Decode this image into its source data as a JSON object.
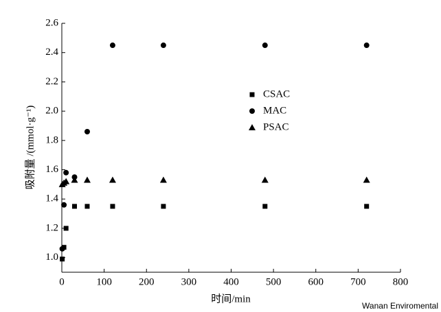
{
  "chart_data": {
    "type": "scatter",
    "x_label": "时间/min",
    "y_label": "吸附量 /(mmol·g⁻¹)",
    "x": [
      1,
      5,
      10,
      30,
      60,
      120,
      240,
      480,
      720
    ],
    "series": [
      {
        "name": "CSAC",
        "color": "#000000",
        "marker": "square",
        "values": [
          0.99,
          1.07,
          1.2,
          1.35,
          1.35,
          1.35,
          1.35,
          1.35,
          1.35
        ]
      },
      {
        "name": "MAC",
        "color": "#000000",
        "marker": "circle",
        "values": [
          1.06,
          1.36,
          1.58,
          1.55,
          1.86,
          2.45,
          2.45,
          2.45,
          2.45
        ]
      },
      {
        "name": "PSAC",
        "color": "#000000",
        "marker": "triangle",
        "values": [
          1.5,
          1.51,
          1.52,
          1.53,
          1.53,
          1.53,
          1.53,
          1.53,
          1.53
        ]
      }
    ],
    "xlim": [
      0,
      800
    ],
    "xticks": [
      0,
      100,
      200,
      300,
      400,
      500,
      600,
      700,
      800
    ],
    "ylim": [
      0.9,
      2.6
    ],
    "yticks": [
      {
        "value": 1,
        "label": "1.0"
      },
      {
        "value": 1.2,
        "label": "1.2"
      },
      {
        "value": 1.4,
        "label": "1.4"
      },
      {
        "value": 1.6,
        "label": "1.6"
      },
      {
        "value": 1.8,
        "label": "1.8"
      },
      {
        "value": 2,
        "label": "2.0"
      },
      {
        "value": 2.2,
        "label": "2.2"
      },
      {
        "value": 2.4,
        "label": "2.4"
      },
      {
        "value": 2.6,
        "label": "2.6"
      }
    ],
    "grid": false,
    "legend": "upper-center",
    "watermark": "Wanan Enviromental"
  }
}
